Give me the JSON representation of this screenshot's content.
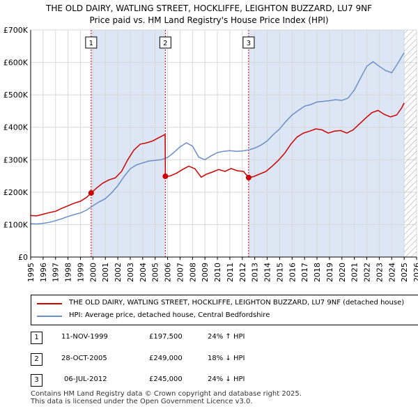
{
  "title_line1": "THE OLD DAIRY, WATLING STREET, HOCKLIFFE, LEIGHTON BUZZARD, LU7 9NF",
  "title_line2": "Price paid vs. HM Land Registry's House Price Index (HPI)",
  "colors": {
    "property": "#cc0000",
    "hpi": "#6a8fc8",
    "shade": "#dde6f5",
    "grid": "#d8d8d8",
    "vline": "#cc0000"
  },
  "chart_data": {
    "type": "line",
    "xlim": [
      1995,
      2026
    ],
    "ylim": [
      0,
      700000
    ],
    "y_ticks": [
      0,
      100000,
      200000,
      300000,
      400000,
      500000,
      600000,
      700000
    ],
    "y_tick_labels": [
      "£0",
      "£100K",
      "£200K",
      "£300K",
      "£400K",
      "£500K",
      "£600K",
      "£700K"
    ],
    "x_ticks": [
      "1995",
      "1996",
      "1997",
      "1998",
      "1999",
      "2000",
      "2001",
      "2002",
      "2003",
      "2004",
      "2005",
      "2006",
      "2007",
      "2008",
      "2009",
      "2010",
      "2011",
      "2012",
      "2013",
      "2014",
      "2015",
      "2016",
      "2017",
      "2018",
      "2019",
      "2020",
      "2021",
      "2022",
      "2023",
      "2024",
      "2025",
      "2026"
    ],
    "shaded_spans": [
      [
        1999.86,
        2005.82
      ],
      [
        2012.51,
        2025.0
      ]
    ],
    "hatch_from": 2025.0,
    "markers": [
      {
        "label": "1",
        "x": 1999.86,
        "y": 197500
      },
      {
        "label": "2",
        "x": 2005.82,
        "y": 249000
      },
      {
        "label": "3",
        "x": 2012.51,
        "y": 245000
      }
    ],
    "series": [
      {
        "name": "THE OLD DAIRY, WATLING STREET, HOCKLIFFE, LEIGHTON BUZZARD, LU7 9NF (detached house)",
        "x": [
          1995.0,
          1995.5,
          1996.0,
          1996.5,
          1997.0,
          1997.5,
          1998.0,
          1998.5,
          1999.0,
          1999.5,
          1999.86,
          2000.3,
          2000.8,
          2001.3,
          2001.8,
          2002.3,
          2002.8,
          2003.3,
          2003.8,
          2004.3,
          2004.8,
          2005.3,
          2005.8,
          2005.82,
          2006.2,
          2006.7,
          2007.2,
          2007.7,
          2008.2,
          2008.7,
          2009.1,
          2009.6,
          2010.1,
          2010.6,
          2011.1,
          2011.6,
          2012.1,
          2012.51,
          2012.9,
          2013.4,
          2013.9,
          2014.4,
          2014.9,
          2015.4,
          2015.9,
          2016.4,
          2016.9,
          2017.4,
          2017.9,
          2018.4,
          2018.9,
          2019.4,
          2019.9,
          2020.4,
          2020.9,
          2021.4,
          2021.9,
          2022.4,
          2022.9,
          2023.4,
          2023.9,
          2024.4,
          2024.8,
          2025.0
        ],
        "values": [
          128000,
          127000,
          132000,
          137000,
          141000,
          150000,
          158000,
          166000,
          172000,
          184000,
          197500,
          213000,
          228000,
          238000,
          244000,
          264000,
          300000,
          330000,
          348000,
          352000,
          358000,
          368000,
          378000,
          249000,
          250000,
          258000,
          270000,
          280000,
          272000,
          246000,
          255000,
          262000,
          270000,
          264000,
          273000,
          266000,
          264000,
          245000,
          248000,
          256000,
          264000,
          280000,
          298000,
          320000,
          348000,
          370000,
          382000,
          388000,
          395000,
          392000,
          382000,
          388000,
          390000,
          382000,
          392000,
          410000,
          428000,
          445000,
          452000,
          440000,
          432000,
          438000,
          460000,
          475000
        ]
      },
      {
        "name": "HPI: Average price, detached house, Central Bedfordshire",
        "x": [
          1995.0,
          1995.5,
          1996.0,
          1996.5,
          1997.0,
          1997.5,
          1998.0,
          1998.5,
          1999.0,
          1999.5,
          2000.0,
          2000.5,
          2001.0,
          2001.5,
          2002.0,
          2002.5,
          2003.0,
          2003.5,
          2004.0,
          2004.5,
          2005.0,
          2005.5,
          2006.0,
          2006.5,
          2007.0,
          2007.5,
          2008.0,
          2008.5,
          2009.0,
          2009.5,
          2010.0,
          2010.5,
          2011.0,
          2011.5,
          2012.0,
          2012.5,
          2013.0,
          2013.5,
          2014.0,
          2014.5,
          2015.0,
          2015.5,
          2016.0,
          2016.5,
          2017.0,
          2017.5,
          2018.0,
          2018.5,
          2019.0,
          2019.5,
          2020.0,
          2020.5,
          2021.0,
          2021.5,
          2022.0,
          2022.5,
          2023.0,
          2023.5,
          2024.0,
          2024.5,
          2025.0
        ],
        "values": [
          103000,
          102000,
          104000,
          107000,
          112000,
          118000,
          125000,
          131000,
          136000,
          145000,
          158000,
          170000,
          180000,
          198000,
          220000,
          248000,
          272000,
          284000,
          290000,
          296000,
          298000,
          300000,
          307000,
          322000,
          340000,
          352000,
          342000,
          308000,
          300000,
          312000,
          322000,
          326000,
          328000,
          326000,
          327000,
          330000,
          336000,
          345000,
          358000,
          378000,
          395000,
          418000,
          438000,
          452000,
          465000,
          470000,
          478000,
          480000,
          482000,
          485000,
          483000,
          490000,
          515000,
          552000,
          588000,
          602000,
          588000,
          575000,
          568000,
          598000,
          630000
        ]
      }
    ]
  },
  "legend": {
    "property_label": "THE OLD DAIRY, WATLING STREET, HOCKLIFFE, LEIGHTON BUZZARD, LU7 9NF (detached house)",
    "hpi_label": "HPI: Average price, detached house, Central Bedfordshire"
  },
  "sales": [
    {
      "num": "1",
      "date": "11-NOV-1999",
      "price": "£197,500",
      "change": "24% ↑ HPI"
    },
    {
      "num": "2",
      "date": "28-OCT-2005",
      "price": "£249,000",
      "change": "18% ↓ HPI"
    },
    {
      "num": "3",
      "date": "06-JUL-2012",
      "price": "£245,000",
      "change": "24% ↓ HPI"
    }
  ],
  "footer_line1": "Contains HM Land Registry data © Crown copyright and database right 2025.",
  "footer_line2": "This data is licensed under the Open Government Licence v3.0."
}
